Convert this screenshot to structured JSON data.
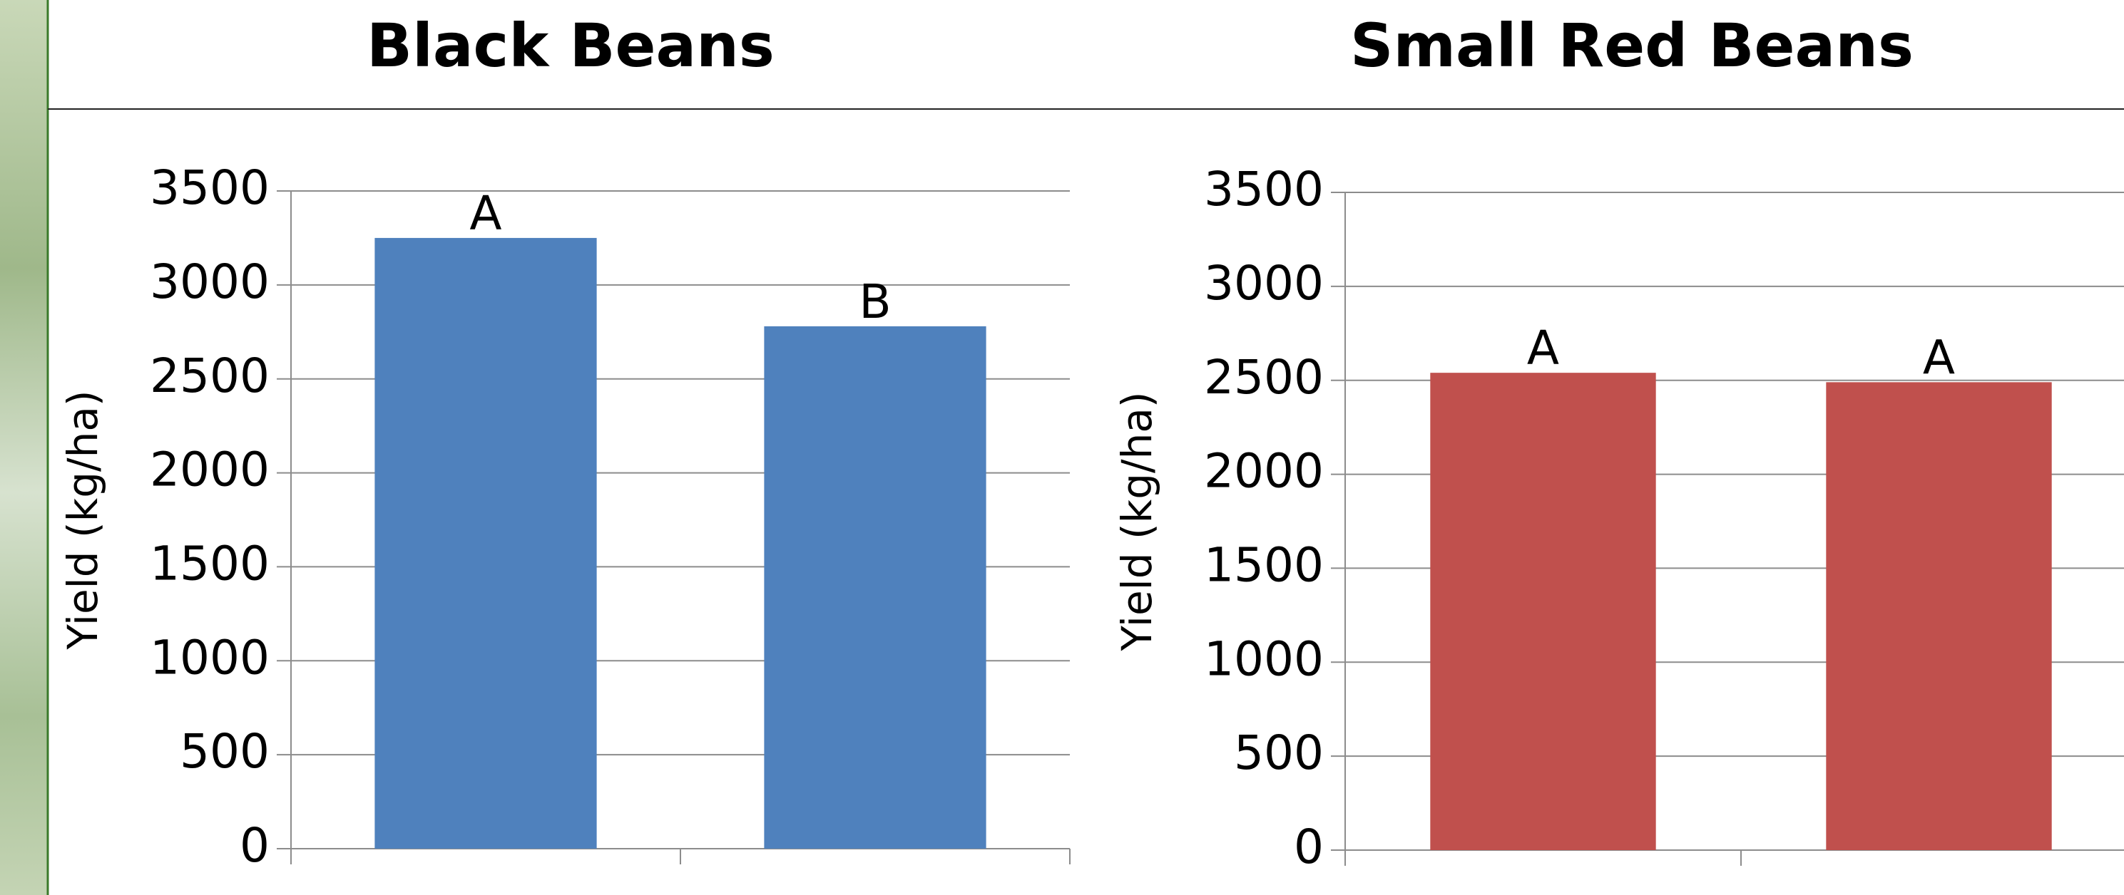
{
  "chart_data": [
    {
      "type": "bar",
      "title": "Black Beans",
      "y_label": "Yield (kg/ha)",
      "categories": [
        null,
        null
      ],
      "values": [
        3250,
        2780
      ],
      "significance_letters": [
        "A",
        "B"
      ],
      "color": "#4f81bd",
      "ylim": [
        0,
        3500
      ],
      "yticks": [
        0,
        500,
        1000,
        1500,
        2000,
        2500,
        3000,
        3500
      ],
      "grid": true
    },
    {
      "type": "bar",
      "title": "Small Red Beans",
      "y_label": "Yield (kg/ha)",
      "categories": [
        null,
        null
      ],
      "values": [
        2540,
        2490
      ],
      "significance_letters": [
        "A",
        "A"
      ],
      "color": "#c0504d",
      "ylim": [
        0,
        3500
      ],
      "yticks": [
        0,
        500,
        1000,
        1500,
        2000,
        2500,
        3000,
        3500
      ],
      "grid": true
    }
  ]
}
